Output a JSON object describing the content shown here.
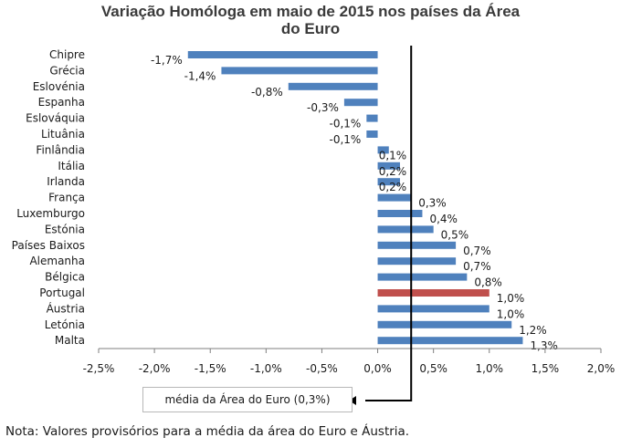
{
  "title_line1": "Variação Homóloga em maio de 2015 nos países da Área",
  "title_line2": "do Euro",
  "chart_data": {
    "type": "bar",
    "orientation": "horizontal",
    "title": "Variação Homóloga em maio de 2015 nos países da Área do Euro",
    "categories": [
      "Chipre",
      "Grécia",
      "Eslovénia",
      "Espanha",
      "Eslováquia",
      "Lituânia",
      "Finlândia",
      "Itália",
      "Irlanda",
      "França",
      "Luxemburgo",
      "Estónia",
      "Países Baixos",
      "Alemanha",
      "Bélgica",
      "Portugal",
      "Áustria",
      "Letónia",
      "Malta"
    ],
    "values": [
      -1.7,
      -1.4,
      -0.8,
      -0.3,
      -0.1,
      -0.1,
      0.1,
      0.2,
      0.2,
      0.3,
      0.4,
      0.5,
      0.7,
      0.7,
      0.8,
      1.0,
      1.0,
      1.2,
      1.3
    ],
    "value_labels": [
      "-1,7%",
      "-1,4%",
      "-0,8%",
      "-0,3%",
      "-0,1%",
      "-0,1%",
      "0,1%",
      "0,2%",
      "0,2%",
      "0,3%",
      "0,4%",
      "0,5%",
      "0,7%",
      "0,7%",
      "0,8%",
      "1,0%",
      "1,0%",
      "1,2%",
      "1,3%"
    ],
    "highlight_category": "Portugal",
    "colors": {
      "bar": "#4f81bd",
      "highlight": "#c0504d",
      "reference_line": "#000000"
    },
    "xlim": [
      -2.5,
      2.0
    ],
    "xticks": [
      -2.5,
      -2.0,
      -1.5,
      -1.0,
      -0.5,
      0.0,
      0.5,
      1.0,
      1.5,
      2.0
    ],
    "xtick_labels": [
      "-2,5%",
      "-2,0%",
      "-1,5%",
      "-1,0%",
      "-0,5%",
      "0,0%",
      "0,5%",
      "1,0%",
      "1,5%",
      "2,0%"
    ],
    "reference_value": 0.3,
    "grid": false,
    "xlabel": "",
    "ylabel": ""
  },
  "reference_label": "média da Área do Euro (0,3%)",
  "note": "Nota: Valores provisórios para a média da área do Euro e Áustria."
}
